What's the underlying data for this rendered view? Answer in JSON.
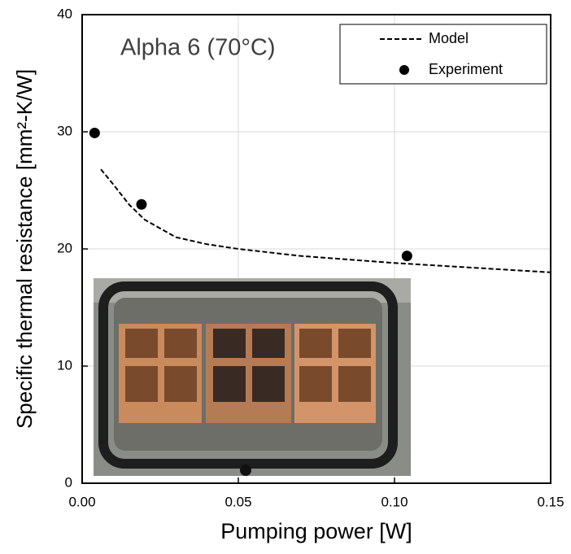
{
  "chart_data": {
    "type": "line",
    "annotation": "Alpha 6 (70°C)",
    "x_label": "Pumping power [W]",
    "y_label": "Specific thermal resistance [mm²-K/W]",
    "xlim": [
      0,
      0.15
    ],
    "ylim": [
      0,
      40
    ],
    "xticks": [
      {
        "value": 0,
        "label": "0.00"
      },
      {
        "value": 0.05,
        "label": "0.05"
      },
      {
        "value": 0.1,
        "label": "0.10"
      },
      {
        "value": 0.15,
        "label": "0.15"
      }
    ],
    "yticks": [
      0,
      10,
      20,
      30,
      40
    ],
    "grid": true,
    "legend": "upper right",
    "series": [
      {
        "name": "Model",
        "color": "#000000",
        "style": "dashed",
        "x": [
          0.006,
          0.01,
          0.015,
          0.02,
          0.03,
          0.04,
          0.05,
          0.07,
          0.1,
          0.15
        ],
        "values": [
          26.8,
          25.5,
          23.8,
          22.5,
          21.0,
          20.4,
          20.0,
          19.4,
          18.8,
          18.0
        ]
      },
      {
        "name": "Experiment",
        "color": "#000000",
        "style": "markers",
        "x": [
          0.004,
          0.019,
          0.104
        ],
        "values": [
          29.9,
          23.8,
          19.4
        ]
      }
    ]
  }
}
